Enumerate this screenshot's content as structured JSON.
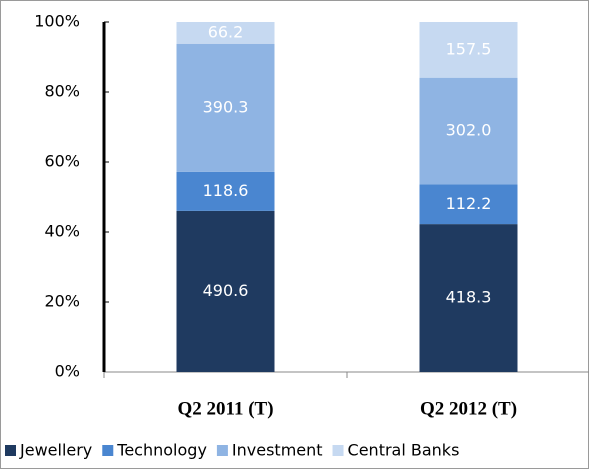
{
  "chart_data": {
    "type": "stacked_bar",
    "normalize": true,
    "categories": [
      "Q2 2011 (T)",
      "Q2 2012 (T)"
    ],
    "series": [
      {
        "name": "Jewellery",
        "color": "#1f3a60",
        "values": [
          490.6,
          418.3
        ]
      },
      {
        "name": "Technology",
        "color": "#4a86d0",
        "values": [
          118.6,
          112.2
        ]
      },
      {
        "name": "Investment",
        "color": "#8fb4e3",
        "values": [
          390.3,
          302
        ],
        "value_labels": [
          "390.3",
          "302.0"
        ]
      },
      {
        "name": "Central Banks",
        "color": "#c6d9f1",
        "values": [
          66.2,
          157.5
        ]
      }
    ],
    "ylim": [
      0,
      100
    ],
    "yticks": [
      {
        "value": 0,
        "label": "0%"
      },
      {
        "value": 20,
        "label": "20%"
      },
      {
        "value": 40,
        "label": "40%"
      },
      {
        "value": 60,
        "label": "60%"
      },
      {
        "value": 80,
        "label": "80%"
      },
      {
        "value": 100,
        "label": "100%"
      }
    ],
    "legend": "bottom"
  }
}
